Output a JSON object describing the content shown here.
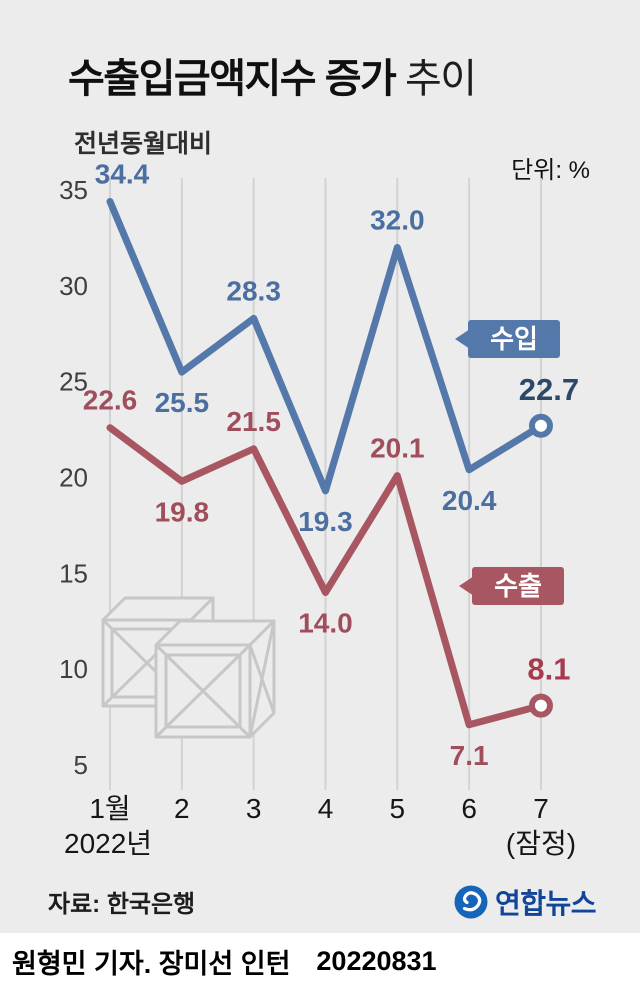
{
  "title": {
    "main": "수출입금액지수 증가",
    "suffix": " 추이"
  },
  "subtitle": "전년동월대비",
  "unit_label": "단위: %",
  "source": "자료: 한국은행",
  "logo": {
    "text": "연합뉴스",
    "circle_color": "#1565b8",
    "text_color": "#10459a"
  },
  "footer": {
    "byline": "원형민 기자. 장미선 인턴",
    "date": "20220831"
  },
  "chart_data": {
    "type": "line",
    "title": "수출입금액지수 증가 추이",
    "subtitle": "전년동월대비",
    "unit": "%",
    "categories": [
      "1월",
      "2",
      "3",
      "4",
      "5",
      "6",
      "7"
    ],
    "year_label": "2022년",
    "provisional_label": "(잠정)",
    "y_ticks": [
      35,
      30,
      25,
      20,
      15,
      10,
      5
    ],
    "ylim": [
      3,
      36.5
    ],
    "grid": "vertical",
    "grid_color": "#d2d2d2",
    "legend": [
      "수입",
      "수출"
    ],
    "series": [
      {
        "name": "수입",
        "values": [
          34.4,
          25.5,
          28.3,
          19.3,
          32.0,
          20.4,
          22.7
        ],
        "color": "#5478a9",
        "label_color": "#4a6fa0",
        "final_label_color": "#2d4868",
        "last_point_style": "hollow-circle"
      },
      {
        "name": "수출",
        "values": [
          22.6,
          19.8,
          21.5,
          14.0,
          20.1,
          7.1,
          8.1
        ],
        "color": "#a85762",
        "label_color": "#a14e5c",
        "final_label_color": "#a63b50",
        "last_point_style": "hollow-circle"
      }
    ]
  }
}
